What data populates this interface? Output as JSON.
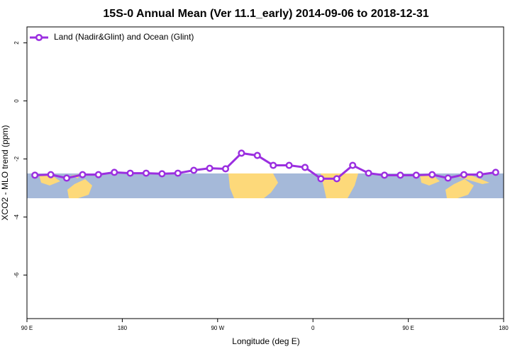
{
  "chart_data": {
    "type": "line",
    "title": "15S-0 Annual Mean (Ver 11.1_early)   2014-09-06 to 2018-12-31",
    "xlabel": "Longitude (deg E)",
    "ylabel": "XCO2 - MLO trend (ppm)",
    "x": [
      97.5,
      112.5,
      127.5,
      142.5,
      157.5,
      172.5,
      187.5,
      202.5,
      217.5,
      232.5,
      247.5,
      262.5,
      277.5,
      292.5,
      307.5,
      322.5,
      337.5,
      352.5,
      367.5,
      382.5,
      397.5,
      412.5,
      427.5,
      442.5,
      457.5,
      472.5,
      487.5,
      502.5,
      517.5,
      532.5
    ],
    "series": [
      {
        "name": "Land (Nadir&Glint) and Ocean (Glint)",
        "color": "#9b2fe0",
        "values": [
          -2.56,
          -2.54,
          -2.66,
          -2.54,
          -2.54,
          -2.46,
          -2.49,
          -2.49,
          -2.51,
          -2.49,
          -2.39,
          -2.32,
          -2.34,
          -1.8,
          -1.88,
          -2.22,
          -2.22,
          -2.29,
          -2.68,
          -2.68,
          -2.22,
          -2.49,
          -2.56,
          -2.56,
          -2.56,
          -2.54,
          -2.66,
          -2.54,
          -2.54,
          -2.46
        ]
      }
    ],
    "xlim": [
      90,
      540
    ],
    "xticks": [
      {
        "value": 90,
        "label": "90 E"
      },
      180,
      {
        "value": 270,
        "label": "90 W"
      },
      {
        "value": 360,
        "label": "0"
      },
      {
        "value": 450,
        "label": "90 E"
      },
      {
        "value": 540,
        "label": "180"
      }
    ],
    "ylim": [
      -7.5,
      2.55
    ],
    "yticks": [
      -6,
      -4,
      -2,
      0,
      2
    ],
    "legend": "top-left"
  }
}
